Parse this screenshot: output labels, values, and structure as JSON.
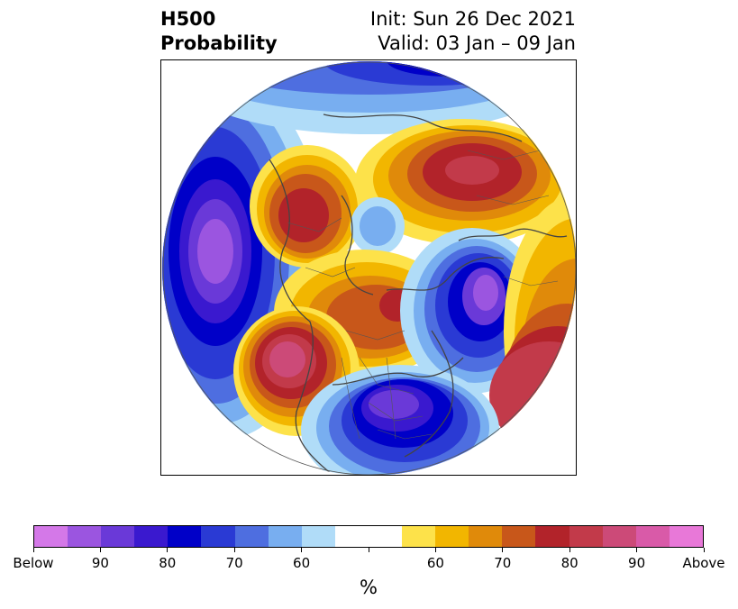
{
  "title": {
    "left_line1": "H500",
    "left_line2": "Probability",
    "right_line1": "Init: Sun 26 Dec 2021",
    "right_line2": "Valid: 03 Jan – 09 Jan"
  },
  "colorbar": {
    "colors": [
      "#d478e8",
      "#9b55e0",
      "#6a39d8",
      "#3a19cf",
      "#0000c8",
      "#2a3ad4",
      "#4e6ee0",
      "#78aef0",
      "#b0dcf8",
      "#ffffff",
      "#fde24a",
      "#f2b600",
      "#e08a0a",
      "#c8571a",
      "#b2232a",
      "#c23a4a",
      "#cc4a78",
      "#d95aa8",
      "#e878d8"
    ],
    "tick_labels": [
      "Below",
      "90",
      "80",
      "70",
      "60",
      "60",
      "70",
      "80",
      "90",
      "Above"
    ],
    "unit": "%"
  },
  "map": {
    "projection": "north-polar-stereographic",
    "shown_boundaries": [
      "coastlines",
      "country-borders",
      "us-state-borders"
    ]
  }
}
